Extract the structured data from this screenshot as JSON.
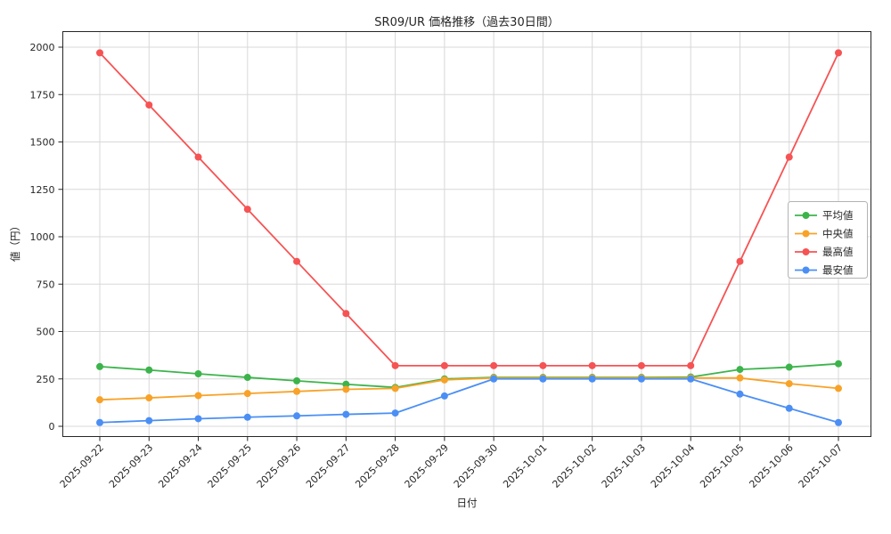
{
  "chart": {
    "title": "SR09/UR 価格推移（過去30日間）",
    "xlabel": "日付",
    "ylabel": "値（円）"
  },
  "chart_data": {
    "type": "line",
    "title": "SR09/UR 価格推移（過去30日間）",
    "xlabel": "日付",
    "ylabel": "値（円）",
    "grid": true,
    "legend_position": "center right",
    "ylim": [
      -50,
      2080
    ],
    "yticks": [
      0,
      250,
      500,
      750,
      1000,
      1250,
      1500,
      1750,
      2000
    ],
    "x": [
      "2025-09-22",
      "2025-09-23",
      "2025-09-24",
      "2025-09-25",
      "2025-09-26",
      "2025-09-27",
      "2025-09-28",
      "2025-09-29",
      "2025-09-30",
      "2025-10-01",
      "2025-10-02",
      "2025-10-03",
      "2025-10-04",
      "2025-10-05",
      "2025-10-06",
      "2025-10-07"
    ],
    "series": [
      {
        "id": "avg",
        "name": "平均値",
        "color": "#3cb44b",
        "values": [
          315,
          297,
          277,
          258,
          240,
          222,
          205,
          250,
          258,
          258,
          258,
          258,
          260,
          300,
          312,
          330
        ]
      },
      {
        "id": "median",
        "name": "中央値",
        "color": "#f8a227",
        "values": [
          140,
          150,
          162,
          173,
          184,
          195,
          200,
          245,
          255,
          255,
          255,
          255,
          255,
          255,
          225,
          200
        ]
      },
      {
        "id": "max",
        "name": "最高値",
        "color": "#f65354",
        "values": [
          1970,
          1695,
          1420,
          1145,
          870,
          595,
          320,
          320,
          320,
          320,
          320,
          320,
          320,
          870,
          1420,
          1970
        ]
      },
      {
        "id": "min",
        "name": "最安値",
        "color": "#4b8ff5",
        "values": [
          20,
          30,
          40,
          48,
          55,
          63,
          70,
          160,
          250,
          250,
          250,
          250,
          250,
          170,
          95,
          20
        ]
      }
    ]
  }
}
